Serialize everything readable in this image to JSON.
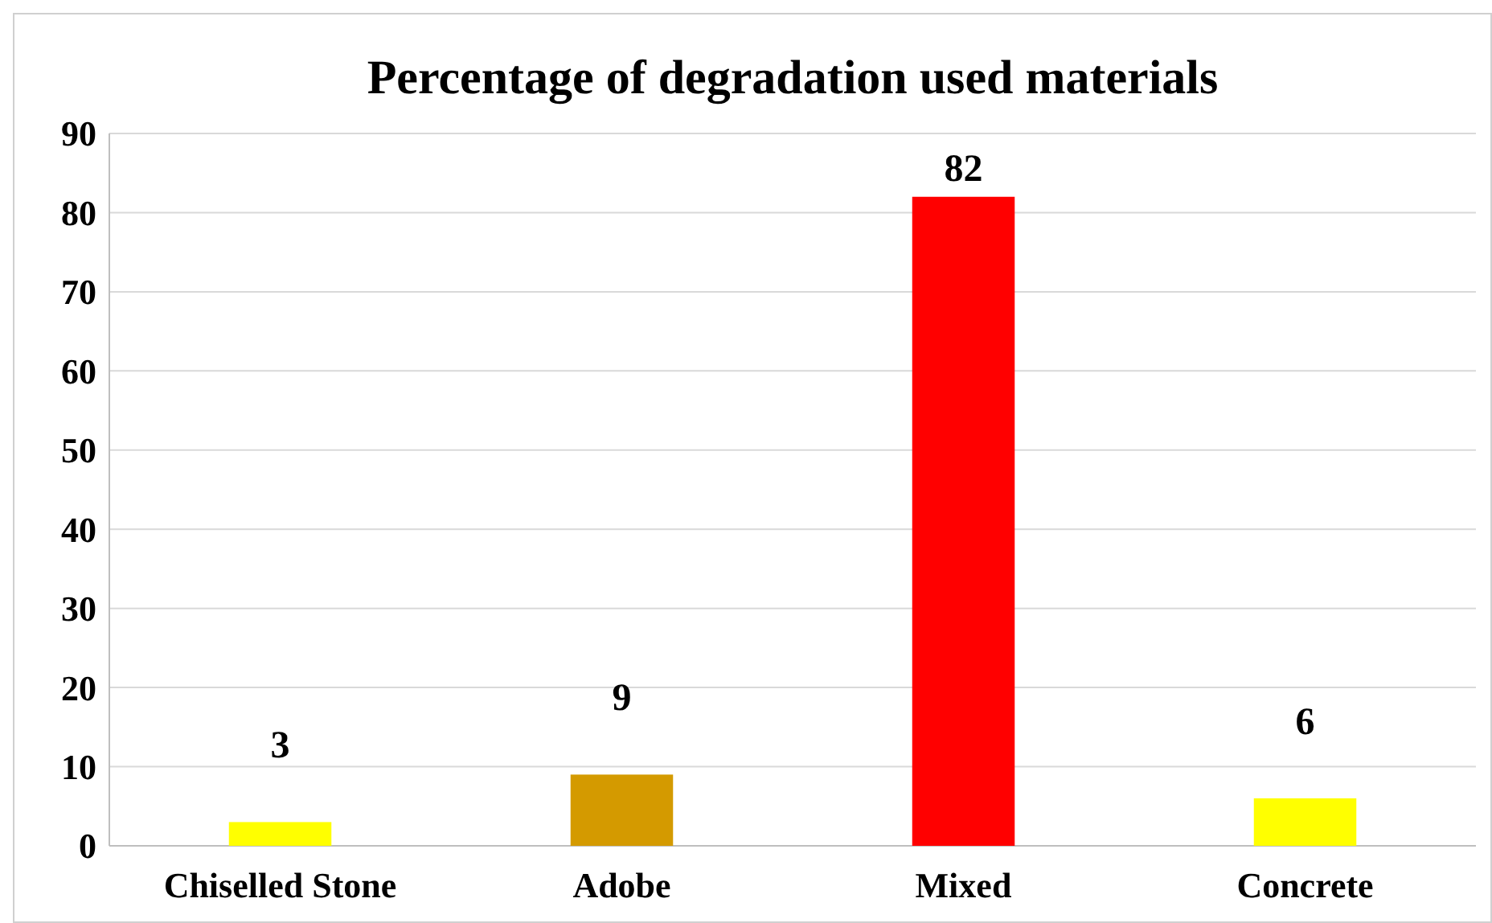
{
  "chart_data": {
    "type": "bar",
    "title": "Percentage of degradation used materials",
    "categories": [
      "Chiselled Stone",
      "Adobe",
      "Mixed",
      "Concrete"
    ],
    "values": [
      3,
      9,
      82,
      6
    ],
    "colors": [
      "#ffff00",
      "#d49a00",
      "#ff0000",
      "#ffff00"
    ],
    "ylim": [
      0,
      90
    ],
    "yticks": [
      0,
      10,
      20,
      30,
      40,
      50,
      60,
      70,
      80,
      90
    ],
    "grid": "y",
    "data_labels": true
  }
}
